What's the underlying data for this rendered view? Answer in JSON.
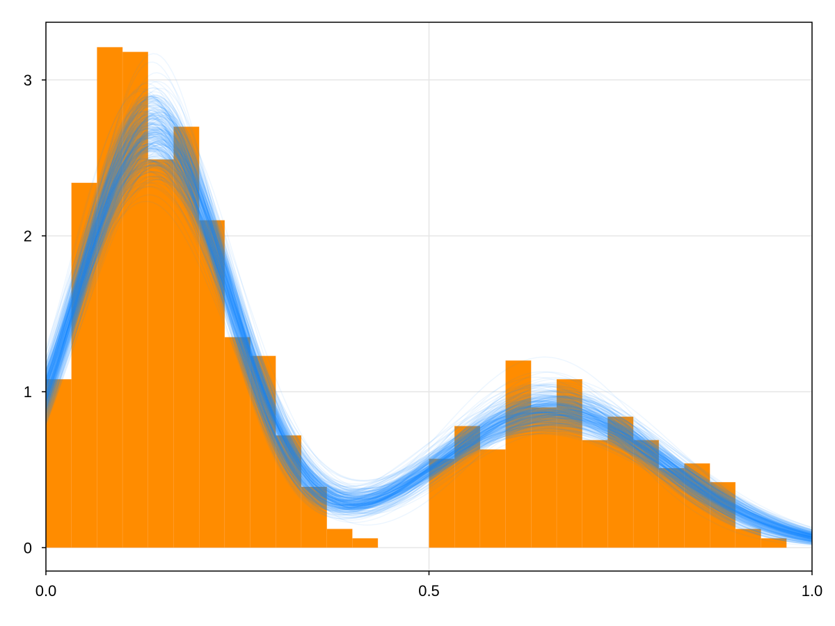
{
  "chart_data": {
    "type": "bar",
    "title": "",
    "xlabel": "",
    "ylabel": "",
    "xlim": [
      0.0,
      1.0
    ],
    "ylim": [
      -0.15,
      3.37
    ],
    "grid": true,
    "legend": "none",
    "x_ticks": [
      {
        "value": 0.0,
        "label": "0.0"
      },
      {
        "value": 0.5,
        "label": "0.5"
      },
      {
        "value": 1.0,
        "label": "1.0"
      }
    ],
    "y_ticks": [
      {
        "value": 0,
        "label": "0"
      },
      {
        "value": 1,
        "label": "1"
      },
      {
        "value": 2,
        "label": "2"
      },
      {
        "value": 3,
        "label": "3"
      }
    ],
    "histogram": {
      "color": "#ff8c00",
      "bin_width": 0.0333,
      "bin_edges": [
        0.0,
        0.0333,
        0.0667,
        0.1,
        0.1333,
        0.1667,
        0.2,
        0.2333,
        0.2667,
        0.3,
        0.3333,
        0.3667,
        0.4,
        0.4333,
        0.4667,
        0.5,
        0.5333,
        0.5667,
        0.6,
        0.6333,
        0.6667,
        0.7,
        0.7333,
        0.7667,
        0.8,
        0.8333,
        0.8667,
        0.9,
        0.9333,
        0.9667,
        1.0
      ],
      "values": [
        1.08,
        2.34,
        3.21,
        3.18,
        2.49,
        2.7,
        2.1,
        1.35,
        1.23,
        0.72,
        0.39,
        0.12,
        0.06,
        0,
        0,
        0.57,
        0.78,
        0.63,
        1.2,
        0.9,
        1.08,
        0.69,
        0.84,
        0.69,
        0.51,
        0.54,
        0.42,
        0.12,
        0.06,
        0
      ]
    },
    "density_samples": {
      "color": "#1e90ff",
      "opacity": 0.08,
      "count": 300,
      "description": "posterior density curves",
      "components": [
        {
          "weight": 0.665,
          "mean": 0.14,
          "sd": 0.1
        },
        {
          "weight": 0.335,
          "mean": 0.66,
          "sd": 0.15
        }
      ]
    }
  }
}
